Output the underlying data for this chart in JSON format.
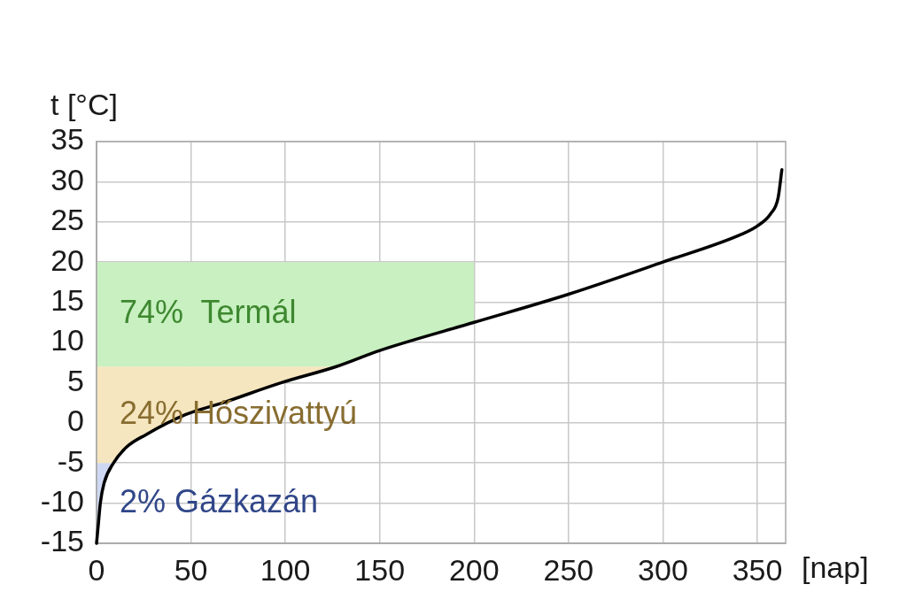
{
  "chart_data": {
    "type": "line",
    "xlabel": "[nap]",
    "ylabel": "t [°C]",
    "xlim": [
      0,
      365
    ],
    "xticks": [
      0,
      50,
      100,
      150,
      200,
      250,
      300,
      350
    ],
    "ylim": [
      -15,
      35
    ],
    "yticks": [
      -15,
      -10,
      -5,
      0,
      5,
      10,
      15,
      20,
      25,
      30,
      35
    ],
    "grid": true,
    "legend": false,
    "marker": "none",
    "line_style": "solid",
    "series": [
      {
        "type": "area",
        "color": "#c8f0c0",
        "x": [
          0,
          127,
          150,
          200
        ],
        "values": [
          null,
          null,
          null,
          null
        ],
        "upper": [
          20,
          20,
          20,
          20
        ],
        "lower": [
          7,
          7,
          9,
          12.5
        ]
      },
      {
        "type": "area",
        "color": "#f6e6c0",
        "x": [
          0,
          9,
          16,
          26,
          47,
          67,
          98,
          127
        ],
        "values": [
          null,
          null,
          null,
          null,
          null,
          null,
          null,
          null
        ],
        "upper": [
          7,
          7,
          7,
          7,
          7,
          7,
          7,
          7
        ],
        "lower": [
          -5,
          -5,
          -3,
          -1.5,
          1,
          2.5,
          5,
          7
        ]
      },
      {
        "type": "area",
        "color": "#cfd8f2",
        "x": [
          0,
          1,
          2,
          4,
          9
        ],
        "values": [
          null,
          null,
          null,
          null,
          null
        ],
        "upper": [
          -5,
          -5,
          -5,
          -5,
          -5
        ],
        "lower": [
          -15,
          -12.5,
          -10,
          -7.5,
          -5
        ]
      },
      {
        "type": "line",
        "color": "#000000",
        "x": [
          0,
          1,
          2,
          4,
          9,
          16,
          26,
          47,
          67,
          98,
          127,
          150,
          200,
          250,
          300,
          342,
          350,
          357,
          361,
          363
        ],
        "values": [
          -15,
          -12.5,
          -10,
          -7.5,
          -5,
          -3,
          -1.5,
          1,
          2.5,
          5,
          7,
          9,
          12.5,
          16,
          20,
          23.5,
          24.5,
          26,
          28,
          31.5
        ]
      }
    ],
    "annotations": [
      "74%  Termál",
      "24% Hőszivattyú",
      "2% Gázkazán"
    ]
  }
}
